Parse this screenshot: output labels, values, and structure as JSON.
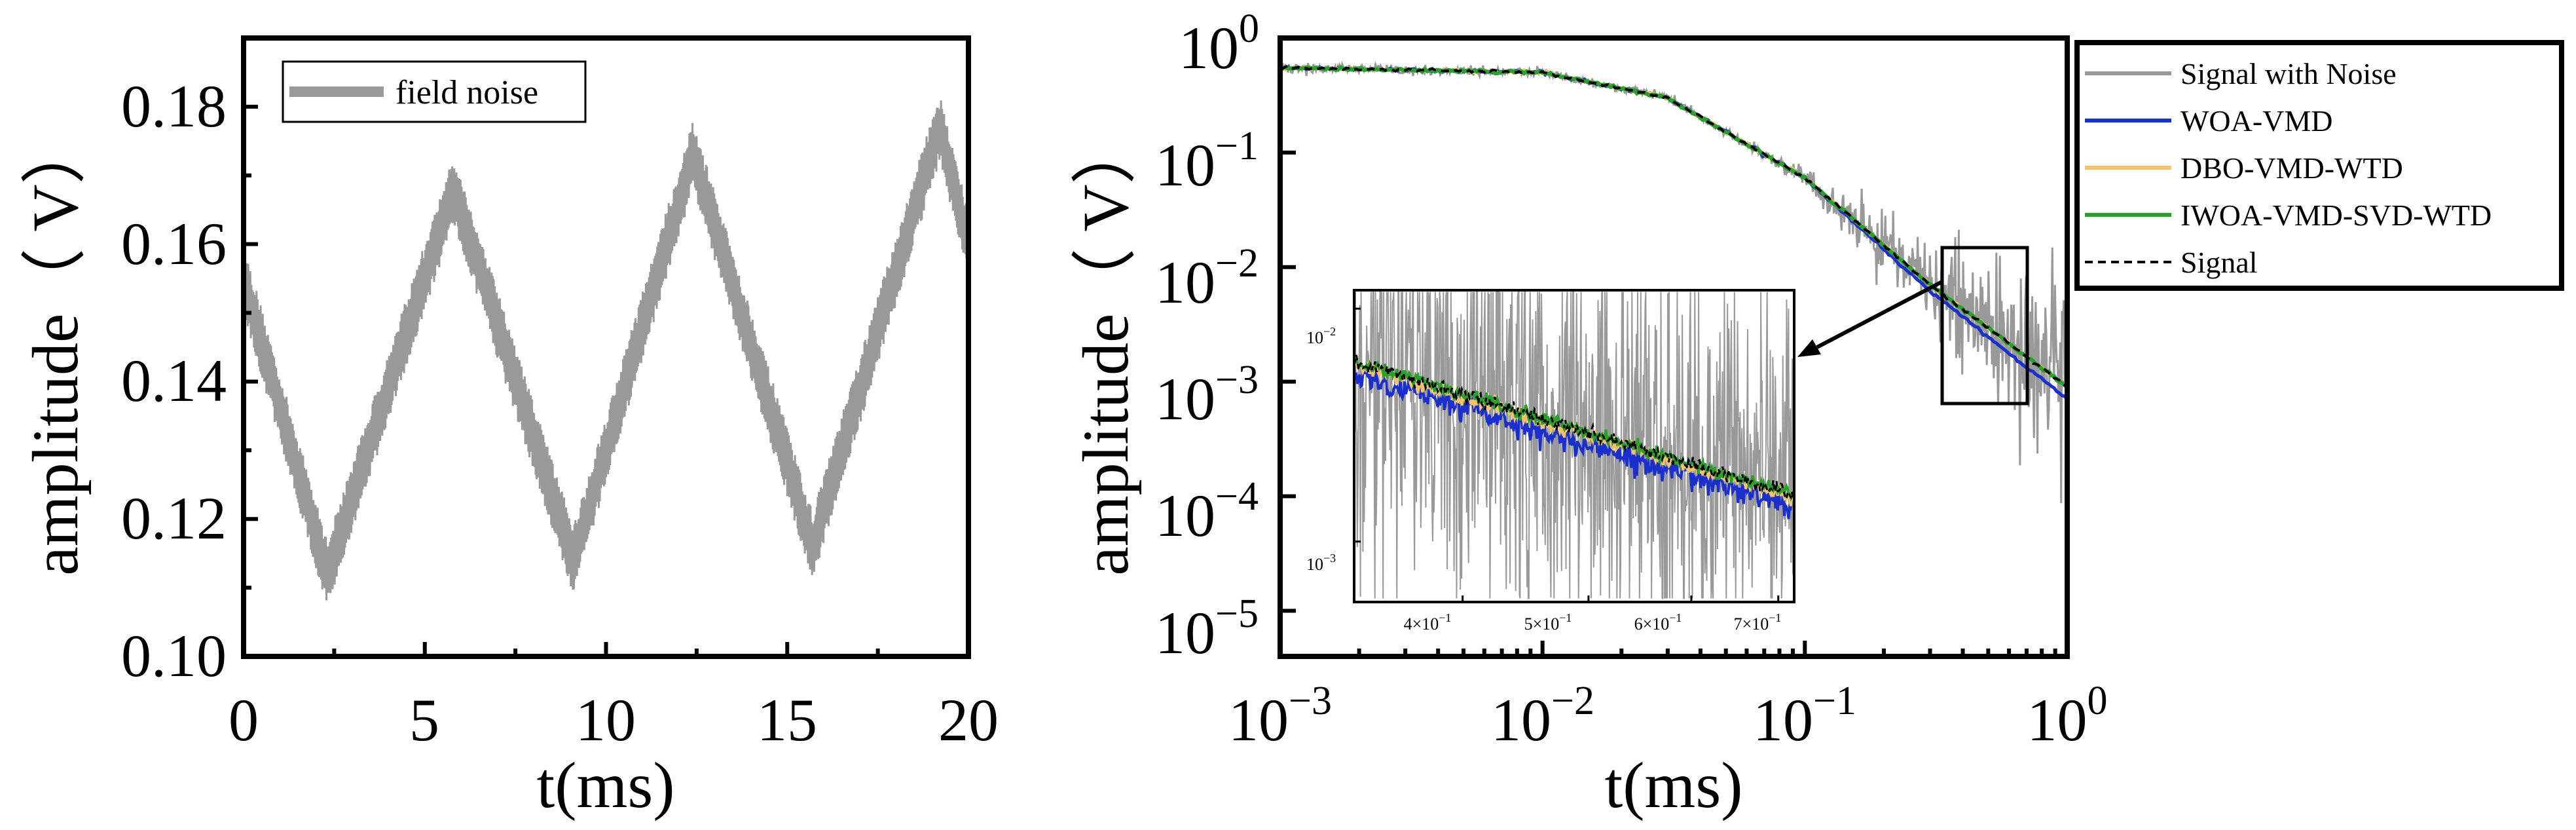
{
  "chart_data": [
    {
      "type": "line",
      "title": "",
      "xlabel": "t(ms)",
      "ylabel": "amplitude（ V）",
      "xlim": [
        0,
        20
      ],
      "ylim": [
        0.1,
        0.19
      ],
      "xticks": [
        "0",
        "5",
        "10",
        "15",
        "20"
      ],
      "yticks": [
        "0.10",
        "0.12",
        "0.14",
        "0.16",
        "0.18"
      ],
      "legend": [
        "field noise"
      ],
      "legend_position": "top-left",
      "series": [
        {
          "name": "field noise",
          "color": "#999999",
          "x": [
            0,
            2.3,
            5.8,
            9.1,
            12.4,
            15.7,
            19.2,
            20
          ],
          "values": [
            0.155,
            0.112,
            0.168,
            0.114,
            0.173,
            0.116,
            0.177,
            0.16
          ],
          "noise_amplitude": 0.005
        }
      ]
    },
    {
      "type": "line",
      "title": "",
      "xlabel": "t(ms)",
      "ylabel": "amplitude（ V）",
      "xscale": "log",
      "yscale": "log",
      "xlim": [
        0.001,
        1
      ],
      "ylim": [
        4e-06,
        1
      ],
      "xticks": [
        {
          "base": "10",
          "exp": "−3"
        },
        {
          "base": "10",
          "exp": "−2"
        },
        {
          "base": "10",
          "exp": "−1"
        },
        {
          "base": "10",
          "exp": "0"
        }
      ],
      "yticks": [
        {
          "base": "10",
          "exp": "0"
        },
        {
          "base": "10",
          "exp": "−1"
        },
        {
          "base": "10",
          "exp": "−2"
        },
        {
          "base": "10",
          "exp": "−3"
        },
        {
          "base": "10",
          "exp": "−4"
        },
        {
          "base": "10",
          "exp": "−5"
        }
      ],
      "legend_position": "outside-right-top",
      "series": [
        {
          "name": "Signal with Noise",
          "color": "#999999",
          "style": "solid"
        },
        {
          "name": "WOA-VMD",
          "color": "#1a2fcc",
          "style": "solid"
        },
        {
          "name": "DBO-VMD-WTD",
          "color": "#f7c36a",
          "style": "solid"
        },
        {
          "name": "IWOA-VMD-SVD-WTD",
          "color": "#2ca02c",
          "style": "solid"
        },
        {
          "name": "Signal",
          "color": "#000000",
          "style": "dashed"
        }
      ],
      "signal_model": {
        "t": [
          0.001,
          0.01,
          0.03,
          0.1,
          0.3,
          1
        ],
        "values": [
          0.55,
          0.5,
          0.3,
          0.06,
          0.007,
          0.0009
        ]
      },
      "zoom_box": {
        "xlim": [
          0.33,
          0.72
        ],
        "ylim": [
          0.0007,
          0.017
        ]
      },
      "inset": {
        "xticks": [
          {
            "base": "4×10",
            "exp": "−1"
          },
          {
            "base": "5×10",
            "exp": "−1"
          },
          {
            "base": "6×10",
            "exp": "−1"
          },
          {
            "base": "7×10",
            "exp": "−1"
          }
        ],
        "yticks": [
          {
            "base": "10",
            "exp": "−2"
          },
          {
            "base": "10",
            "exp": "−3"
          }
        ]
      }
    }
  ]
}
